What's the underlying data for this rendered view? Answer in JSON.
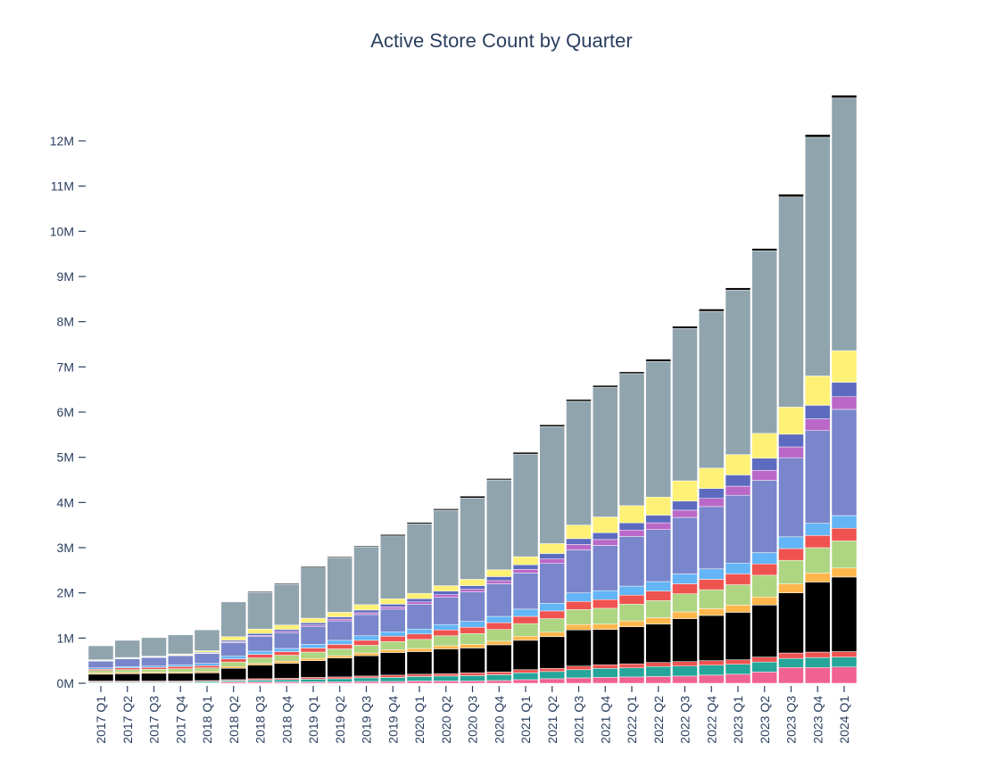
{
  "chart_data": {
    "type": "bar",
    "stacked": true,
    "title": "Active Store Count by Quarter",
    "xlabel": "",
    "ylabel": "",
    "ylim": [
      0,
      13500000
    ],
    "yticks": [
      0,
      1000000,
      2000000,
      3000000,
      4000000,
      5000000,
      6000000,
      7000000,
      8000000,
      9000000,
      10000000,
      11000000,
      12000000
    ],
    "ytick_labels": [
      "0M",
      "1M",
      "2M",
      "3M",
      "4M",
      "5M",
      "6M",
      "7M",
      "8M",
      "9M",
      "10M",
      "11M",
      "12M"
    ],
    "grid": false,
    "legend": "none",
    "value_unit": "millions of stores",
    "categories": [
      "2017 Q1",
      "2017 Q2",
      "2017 Q3",
      "2017 Q4",
      "2018 Q1",
      "2018 Q2",
      "2018 Q3",
      "2018 Q4",
      "2019 Q1",
      "2019 Q2",
      "2019 Q3",
      "2019 Q4",
      "2020 Q1",
      "2020 Q2",
      "2020 Q3",
      "2020 Q4",
      "2021 Q1",
      "2021 Q2",
      "2021 Q3",
      "2021 Q4",
      "2022 Q1",
      "2022 Q2",
      "2022 Q3",
      "2022 Q4",
      "2023 Q1",
      "2023 Q2",
      "2023 Q3",
      "2023 Q4",
      "2024 Q1"
    ],
    "series": [
      {
        "color": "#f06292",
        "values": [
          0.01,
          0.01,
          0.01,
          0.01,
          0.01,
          0.03,
          0.03,
          0.03,
          0.03,
          0.03,
          0.04,
          0.04,
          0.05,
          0.05,
          0.05,
          0.06,
          0.08,
          0.1,
          0.12,
          0.13,
          0.14,
          0.15,
          0.16,
          0.18,
          0.2,
          0.25,
          0.35,
          0.35,
          0.36
        ]
      },
      {
        "color": "#26a69a",
        "values": [
          0.02,
          0.02,
          0.02,
          0.02,
          0.03,
          0.03,
          0.04,
          0.05,
          0.06,
          0.07,
          0.08,
          0.09,
          0.1,
          0.11,
          0.12,
          0.13,
          0.15,
          0.16,
          0.18,
          0.2,
          0.2,
          0.22,
          0.22,
          0.22,
          0.22,
          0.22,
          0.2,
          0.22,
          0.22
        ]
      },
      {
        "color": "#ef5350",
        "values": [
          0.02,
          0.02,
          0.02,
          0.02,
          0.02,
          0.02,
          0.03,
          0.03,
          0.04,
          0.04,
          0.04,
          0.05,
          0.05,
          0.05,
          0.06,
          0.06,
          0.07,
          0.07,
          0.08,
          0.08,
          0.09,
          0.09,
          0.1,
          0.1,
          0.1,
          0.11,
          0.12,
          0.12,
          0.12
        ]
      },
      {
        "color": "#000000",
        "values": [
          0.15,
          0.16,
          0.17,
          0.17,
          0.17,
          0.25,
          0.3,
          0.33,
          0.37,
          0.42,
          0.45,
          0.5,
          0.5,
          0.55,
          0.55,
          0.6,
          0.65,
          0.7,
          0.8,
          0.78,
          0.82,
          0.85,
          0.95,
          1.0,
          1.05,
          1.15,
          1.33,
          1.55,
          1.65
        ]
      },
      {
        "color": "#ffb74d",
        "values": [
          0.03,
          0.03,
          0.03,
          0.03,
          0.03,
          0.04,
          0.04,
          0.05,
          0.05,
          0.05,
          0.06,
          0.06,
          0.07,
          0.07,
          0.08,
          0.08,
          0.09,
          0.1,
          0.12,
          0.12,
          0.13,
          0.14,
          0.15,
          0.15,
          0.16,
          0.18,
          0.2,
          0.2,
          0.2
        ]
      },
      {
        "color": "#aed581",
        "values": [
          0.05,
          0.06,
          0.06,
          0.07,
          0.08,
          0.1,
          0.12,
          0.13,
          0.14,
          0.15,
          0.17,
          0.18,
          0.2,
          0.22,
          0.24,
          0.26,
          0.28,
          0.3,
          0.33,
          0.35,
          0.37,
          0.38,
          0.4,
          0.42,
          0.45,
          0.48,
          0.52,
          0.56,
          0.6
        ]
      },
      {
        "color": "#ef5350",
        "values": [
          0.03,
          0.04,
          0.04,
          0.05,
          0.05,
          0.07,
          0.08,
          0.08,
          0.09,
          0.1,
          0.11,
          0.12,
          0.12,
          0.13,
          0.14,
          0.15,
          0.16,
          0.17,
          0.18,
          0.19,
          0.2,
          0.21,
          0.22,
          0.23,
          0.24,
          0.25,
          0.26,
          0.27,
          0.28
        ]
      },
      {
        "color": "#64b5f6",
        "values": [
          0.03,
          0.03,
          0.03,
          0.04,
          0.05,
          0.06,
          0.07,
          0.07,
          0.08,
          0.09,
          0.1,
          0.1,
          0.11,
          0.12,
          0.13,
          0.14,
          0.16,
          0.17,
          0.19,
          0.2,
          0.2,
          0.21,
          0.22,
          0.23,
          0.24,
          0.25,
          0.26,
          0.27,
          0.28
        ]
      },
      {
        "color": "#7986cb",
        "values": [
          0.15,
          0.17,
          0.19,
          0.2,
          0.22,
          0.3,
          0.33,
          0.35,
          0.4,
          0.43,
          0.47,
          0.5,
          0.55,
          0.6,
          0.65,
          0.72,
          0.8,
          0.88,
          0.95,
          1.0,
          1.1,
          1.15,
          1.25,
          1.38,
          1.5,
          1.6,
          1.75,
          2.05,
          2.35
        ]
      },
      {
        "color": "#ba68c8",
        "values": [
          0.01,
          0.01,
          0.01,
          0.01,
          0.01,
          0.02,
          0.02,
          0.03,
          0.03,
          0.04,
          0.04,
          0.05,
          0.05,
          0.06,
          0.06,
          0.07,
          0.08,
          0.1,
          0.12,
          0.13,
          0.14,
          0.15,
          0.16,
          0.18,
          0.2,
          0.22,
          0.24,
          0.26,
          0.28
        ]
      },
      {
        "color": "#5c6bc0",
        "values": [
          0.01,
          0.01,
          0.01,
          0.01,
          0.02,
          0.03,
          0.04,
          0.04,
          0.05,
          0.05,
          0.06,
          0.06,
          0.07,
          0.08,
          0.08,
          0.09,
          0.1,
          0.12,
          0.13,
          0.15,
          0.16,
          0.17,
          0.2,
          0.22,
          0.25,
          0.27,
          0.28,
          0.3,
          0.32
        ]
      },
      {
        "color": "#fff176",
        "values": [
          0.01,
          0.01,
          0.01,
          0.02,
          0.03,
          0.08,
          0.1,
          0.1,
          0.1,
          0.1,
          0.12,
          0.12,
          0.12,
          0.12,
          0.14,
          0.15,
          0.18,
          0.22,
          0.3,
          0.35,
          0.38,
          0.4,
          0.45,
          0.45,
          0.45,
          0.55,
          0.6,
          0.65,
          0.7
        ]
      },
      {
        "color": "#90a4ae",
        "values": [
          0.31,
          0.38,
          0.41,
          0.42,
          0.46,
          0.77,
          0.81,
          0.9,
          1.13,
          1.21,
          1.28,
          1.39,
          1.54,
          1.67,
          1.8,
          1.99,
          2.27,
          2.59,
          2.74,
          2.87,
          2.92,
          3.0,
          3.37,
          3.47,
          3.64,
          4.04,
          4.65,
          5.28,
          5.59
        ]
      },
      {
        "color": "#000000",
        "values": [
          0.01,
          0.01,
          0.01,
          0.01,
          0.01,
          0.01,
          0.02,
          0.02,
          0.02,
          0.02,
          0.02,
          0.03,
          0.03,
          0.03,
          0.04,
          0.03,
          0.04,
          0.04,
          0.04,
          0.04,
          0.04,
          0.05,
          0.05,
          0.05,
          0.05,
          0.05,
          0.06,
          0.06,
          0.06
        ]
      }
    ]
  }
}
